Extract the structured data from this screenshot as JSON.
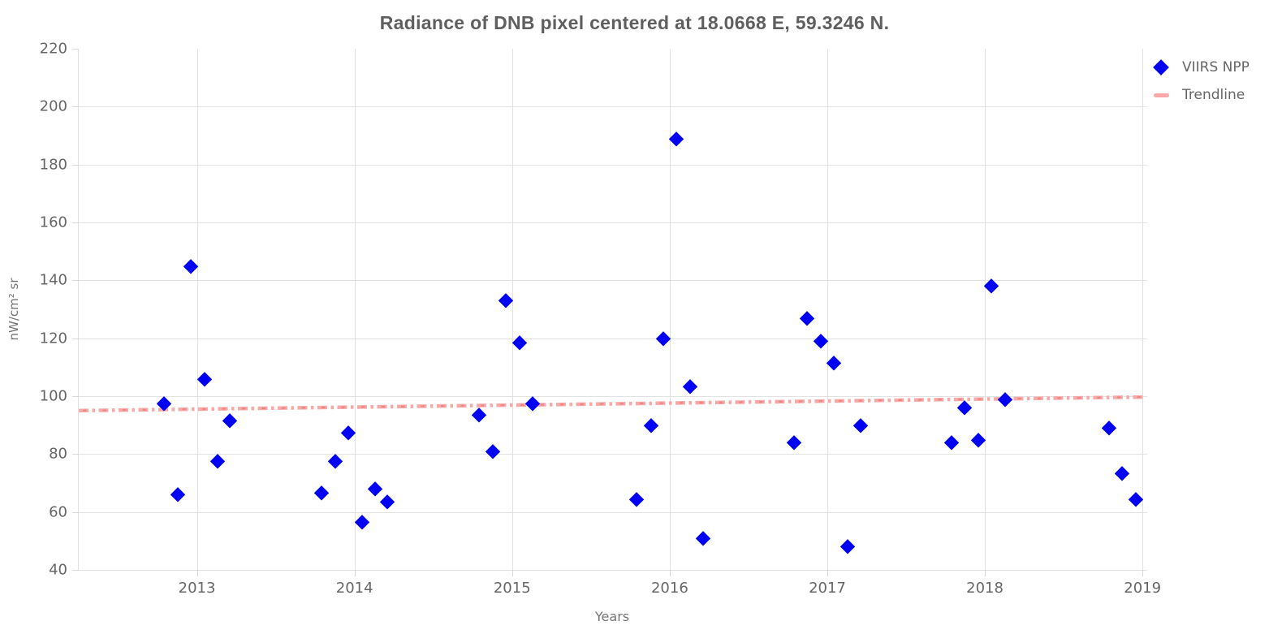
{
  "chart_data": {
    "type": "scatter",
    "title": "Radiance of DNB pixel centered at 18.0668 E, 59.3246 N.",
    "xlabel": "Years",
    "ylabel": "nW/cm² sr",
    "xlim": [
      2012.25,
      2019.03
    ],
    "ylim": [
      40,
      220
    ],
    "x_ticks": [
      2013,
      2014,
      2015,
      2016,
      2017,
      2018,
      2019
    ],
    "y_ticks": [
      220,
      200,
      180,
      160,
      140,
      120,
      100,
      80,
      60,
      40
    ],
    "grid": true,
    "legend_position": "top-right-outside",
    "series": [
      {
        "name": "VIIRS NPP",
        "type": "scatter",
        "marker": "diamond",
        "color": "#0000f2",
        "points": [
          [
            2012.79,
            97.5
          ],
          [
            2012.88,
            66
          ],
          [
            2012.96,
            145
          ],
          [
            2013.05,
            106
          ],
          [
            2013.13,
            77.5
          ],
          [
            2013.21,
            91.5
          ],
          [
            2013.79,
            66.5
          ],
          [
            2013.88,
            77.5
          ],
          [
            2013.96,
            87.5
          ],
          [
            2014.05,
            56.5
          ],
          [
            2014.13,
            68
          ],
          [
            2014.21,
            63.5
          ],
          [
            2014.79,
            93.5
          ],
          [
            2014.88,
            81
          ],
          [
            2014.96,
            133
          ],
          [
            2015.05,
            118.5
          ],
          [
            2015.13,
            97.5
          ],
          [
            2015.79,
            64.5
          ],
          [
            2015.88,
            90
          ],
          [
            2015.96,
            120
          ],
          [
            2016.04,
            189
          ],
          [
            2016.13,
            103.5
          ],
          [
            2016.21,
            51
          ],
          [
            2016.79,
            84
          ],
          [
            2016.87,
            127
          ],
          [
            2016.96,
            119
          ],
          [
            2017.04,
            111.5
          ],
          [
            2017.13,
            48
          ],
          [
            2017.21,
            90
          ],
          [
            2017.79,
            84
          ],
          [
            2017.87,
            96
          ],
          [
            2017.96,
            85
          ],
          [
            2018.04,
            138
          ],
          [
            2018.13,
            99
          ],
          [
            2018.79,
            89
          ],
          [
            2018.87,
            73.5
          ],
          [
            2018.96,
            64.5
          ]
        ]
      },
      {
        "name": "Trendline",
        "type": "line",
        "style": "dash-dot",
        "color": "#f9a8a8",
        "accent_color": "#ee8585",
        "points": [
          [
            2012.25,
            95.0
          ],
          [
            2019.02,
            99.7
          ]
        ]
      }
    ],
    "colors": {
      "grid": "#e2e2e2",
      "tick_text": "#666666",
      "title_text": "#5f5f5f",
      "axis_title_text": "#737373",
      "background": "#ffffff"
    }
  },
  "legend": {
    "items": [
      {
        "label": "VIIRS NPP",
        "swatch": "blue-diamond"
      },
      {
        "label": "Trendline",
        "swatch": "pink-dash"
      }
    ]
  }
}
